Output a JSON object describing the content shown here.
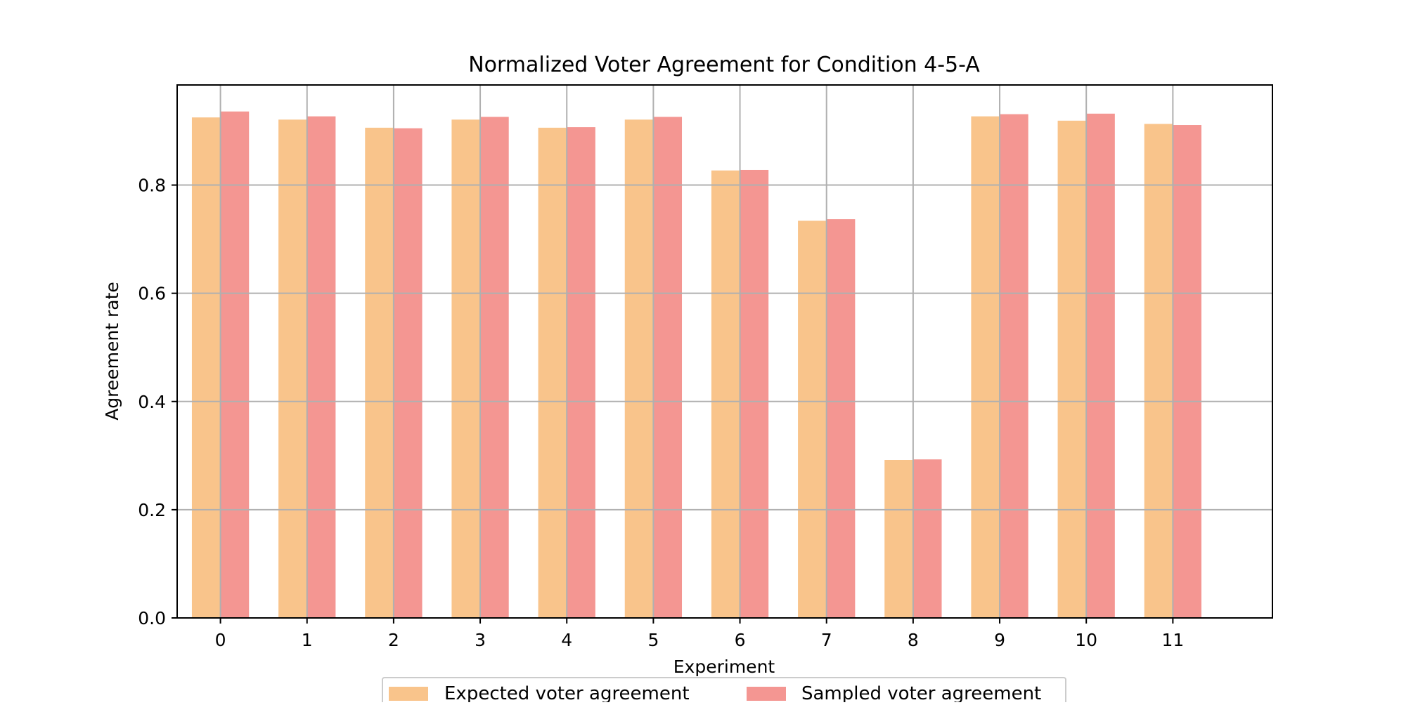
{
  "chart_data": {
    "type": "bar",
    "title": "Normalized Voter Agreement for Condition 4-5-A",
    "xlabel": "Experiment",
    "ylabel": "Agreement rate",
    "categories": [
      "0",
      "1",
      "2",
      "3",
      "4",
      "5",
      "6",
      "7",
      "8",
      "9",
      "10",
      "11"
    ],
    "series": [
      {
        "name": "Expected voter agreement",
        "color": "#f9c48b",
        "values": [
          0.925,
          0.921,
          0.906,
          0.921,
          0.906,
          0.921,
          0.827,
          0.734,
          0.292,
          0.927,
          0.919,
          0.913
        ]
      },
      {
        "name": "Sampled voter agreement",
        "color": "#f49692",
        "values": [
          0.936,
          0.927,
          0.905,
          0.926,
          0.907,
          0.926,
          0.828,
          0.737,
          0.293,
          0.931,
          0.932,
          0.911
        ]
      }
    ],
    "ylim": [
      0,
      0.985
    ],
    "xlim": [
      -0.5,
      12.15
    ],
    "yticks": [
      "0.0",
      "0.2",
      "0.4",
      "0.6",
      "0.8"
    ],
    "ytick_values": [
      0,
      0.2,
      0.4,
      0.6,
      0.8
    ],
    "grid": true,
    "grid_color": "#b0b0b0",
    "legend_placement": "bottom-center"
  }
}
